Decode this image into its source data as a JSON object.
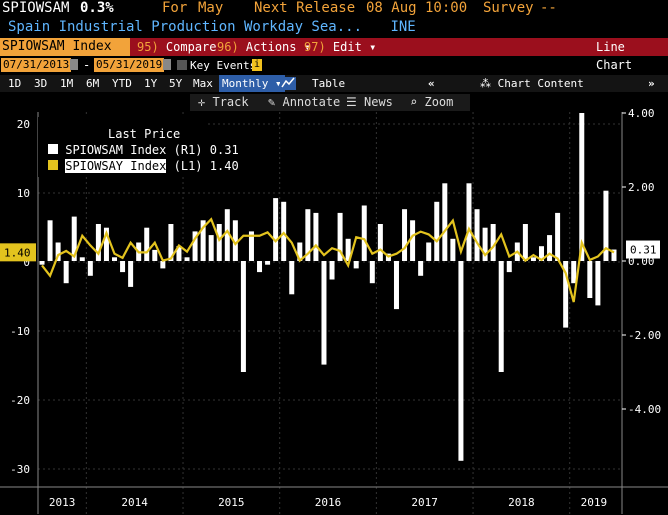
{
  "header": {
    "ticker": "SPIOWSAM",
    "change": "0.3%",
    "for_label": "For",
    "period": "May",
    "next_release_label": "Next Release",
    "next_release": "08 Aug 10:00",
    "survey_label": "Survey",
    "survey_value": "--",
    "subtitle": "Spain Industrial Production Workday Sea...",
    "source": "INE"
  },
  "menubar": {
    "security": "SPIOWSAM Index",
    "compare_key": "95)",
    "compare": "Compare",
    "actions_key": "96)",
    "actions": "Actions",
    "edit_key": "97)",
    "edit": "Edit",
    "chart_type": "Line Chart"
  },
  "dates": {
    "start": "07/31/2013",
    "separator": "-",
    "end": "05/31/2019",
    "key_events": "Key Events"
  },
  "range_buttons": [
    "1D",
    "3D",
    "1M",
    "6M",
    "YTD",
    "1Y",
    "5Y",
    "Max"
  ],
  "frequency": "Monthly",
  "table_label": "Table",
  "chart_content_label": "Chart Content",
  "tools": {
    "track": "Track",
    "annotate": "Annotate",
    "news": "News",
    "zoom": "Zoom"
  },
  "colors": {
    "background": "#000000",
    "series1": "#ffffff",
    "series2": "#e3c31e",
    "menubar": "#9b0f1d",
    "accent": "#f2a33a",
    "subtitle": "#5fb6ff"
  },
  "chart_data": {
    "type": "bar",
    "legend_title": "Last Price",
    "legend_position": "top-left",
    "grid": true,
    "x_labels": [
      "2013",
      "2014",
      "2015",
      "2016",
      "2017",
      "2018",
      "2019"
    ],
    "left_axis": {
      "ticks": [
        "20",
        "10",
        "0",
        "-10",
        "-20",
        "-30"
      ],
      "range": [
        -30,
        22
      ],
      "last_value": "1.40"
    },
    "right_axis": {
      "ticks": [
        "4.00",
        "2.00",
        "0.00",
        "-2.00",
        "-4.00"
      ],
      "range": [
        -5.6,
        4.28
      ],
      "last_value": "0.31"
    },
    "series": [
      {
        "name": "SPIOWSAM Index",
        "axis_tag": "(R1)",
        "last": "0.31",
        "values": [
          -0.1,
          1.1,
          0.5,
          -0.6,
          1.2,
          0.1,
          -0.4,
          1.0,
          0.9,
          0.1,
          -0.3,
          -0.7,
          0.5,
          0.9,
          0.3,
          -0.2,
          1.0,
          0.4,
          0.1,
          0.8,
          1.1,
          0.7,
          1.0,
          1.4,
          1.1,
          -3.0,
          0.8,
          -0.3,
          -0.1,
          1.7,
          1.6,
          -0.9,
          0.5,
          1.4,
          1.3,
          -2.8,
          -0.5,
          1.3,
          0.6,
          -0.2,
          1.5,
          -0.6,
          1.0,
          0.2,
          -1.3,
          1.4,
          1.1,
          -0.4,
          0.5,
          1.6,
          2.1,
          0.6,
          -5.4,
          2.1,
          1.4,
          0.9,
          1.0,
          -3.0,
          -0.3,
          0.5,
          1.0,
          0.1,
          0.4,
          0.7,
          1.3,
          -1.8,
          -0.6,
          4.0,
          -1.0,
          -1.2,
          1.9,
          0.31
        ]
      },
      {
        "name": "SPIOWSAY Index",
        "axis_tag": "(L1)",
        "last": "1.40",
        "values": [
          -0.5,
          -2.0,
          1.0,
          1.6,
          0.8,
          3.8,
          2.4,
          1.2,
          4.2,
          1.2,
          0.6,
          2.8,
          1.4,
          1.4,
          2.8,
          0.2,
          0.5,
          2.4,
          1.5,
          3.4,
          5.0,
          6.2,
          3.2,
          4.5,
          2.6,
          3.8,
          3.8,
          3.8,
          4.3,
          3.0,
          4.2,
          2.8,
          0.2,
          1.2,
          2.4,
          1.0,
          2.0,
          1.6,
          -0.5,
          3.6,
          3.3,
          1.2,
          1.8,
          0.8,
          1.2,
          2.0,
          3.8,
          4.4,
          4.0,
          3.0,
          4.5,
          6.0,
          1.5,
          4.8,
          2.8,
          1.0,
          2.2,
          4.0,
          0.8,
          1.5,
          0.2,
          1.0,
          0.3,
          1.2,
          0.5,
          -1.6,
          -5.8,
          2.8,
          0.3,
          0.8,
          2.0,
          1.4
        ]
      }
    ]
  }
}
